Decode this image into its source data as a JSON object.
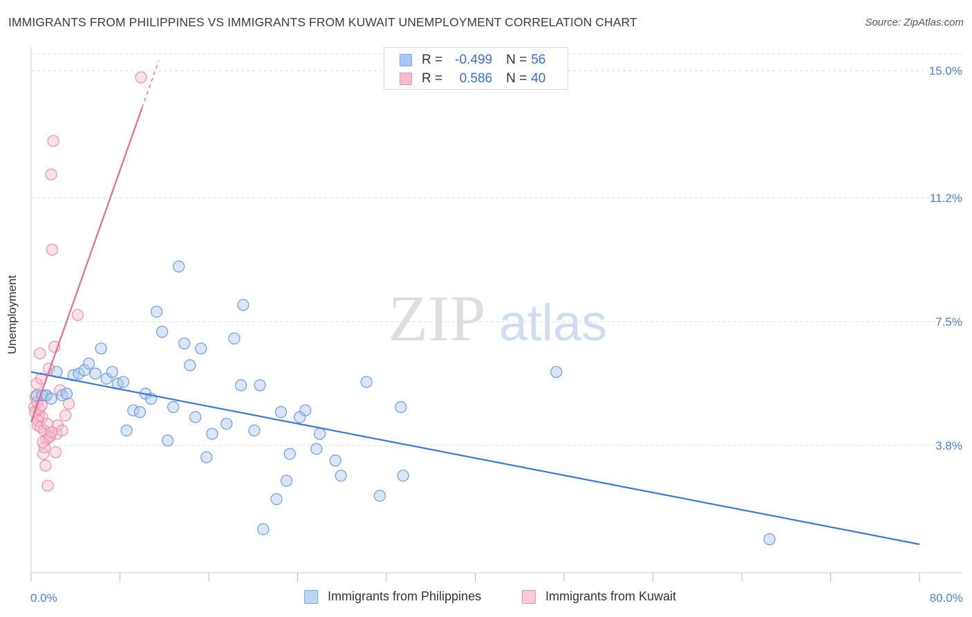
{
  "header": {
    "title": "IMMIGRANTS FROM PHILIPPINES VS IMMIGRANTS FROM KUWAIT UNEMPLOYMENT CORRELATION CHART",
    "source": "Source: ZipAtlas.com"
  },
  "watermark": {
    "zip": "ZIP",
    "atlas": "atlas"
  },
  "legend": {
    "rows": [
      {
        "r_label": "R =",
        "r_value": "-0.499",
        "n_label": "N =",
        "n_value": "56",
        "color": "#a9c7f0",
        "border": "#7aa6e6"
      },
      {
        "r_label": "R =",
        "r_value": "0.586",
        "n_label": "N =",
        "n_value": "40",
        "color": "#f7bccd",
        "border": "#ee8fab"
      }
    ]
  },
  "bottom_legend": [
    {
      "label": "Immigrants from Philippines",
      "color": "#bcd4f5",
      "border": "#7aa6e6"
    },
    {
      "label": "Immigrants from Kuwait",
      "color": "#f9cad8",
      "border": "#ee8fab"
    }
  ],
  "chart_data": {
    "type": "scatter",
    "title": "IMMIGRANTS FROM PHILIPPINES VS IMMIGRANTS FROM KUWAIT UNEMPLOYMENT CORRELATION CHART",
    "xlabel": "",
    "ylabel": "Unemployment",
    "xlim": [
      0,
      80
    ],
    "ylim": [
      0,
      15.5
    ],
    "x_tick_labels": [
      "0.0%",
      "80.0%"
    ],
    "y_ticks": [
      3.8,
      7.5,
      11.2,
      15.0
    ],
    "y_tick_labels": [
      "3.8%",
      "7.5%",
      "11.2%",
      "15.0%"
    ],
    "grid": true,
    "colors": {
      "philippines": "#3a78d6",
      "kuwait": "#e46b97"
    },
    "series": [
      {
        "name": "Immigrants from Philippines",
        "r": -0.499,
        "n": 56,
        "trend": {
          "x0": 0,
          "y0": 6.0,
          "x1": 80,
          "y1": 0.85
        },
        "points": [
          [
            0.5,
            5.3
          ],
          [
            1.0,
            5.3
          ],
          [
            1.4,
            5.3
          ],
          [
            1.8,
            5.2
          ],
          [
            2.3,
            6.0
          ],
          [
            2.8,
            5.3
          ],
          [
            3.2,
            5.35
          ],
          [
            3.8,
            5.9
          ],
          [
            4.3,
            5.95
          ],
          [
            4.8,
            6.05
          ],
          [
            5.2,
            6.25
          ],
          [
            5.8,
            5.95
          ],
          [
            6.3,
            6.7
          ],
          [
            6.8,
            5.8
          ],
          [
            7.3,
            6.0
          ],
          [
            7.8,
            5.65
          ],
          [
            8.3,
            5.7
          ],
          [
            8.6,
            4.25
          ],
          [
            9.2,
            4.85
          ],
          [
            9.8,
            4.8
          ],
          [
            10.3,
            5.35
          ],
          [
            10.8,
            5.2
          ],
          [
            11.3,
            7.8
          ],
          [
            11.8,
            7.2
          ],
          [
            12.3,
            3.95
          ],
          [
            12.8,
            4.95
          ],
          [
            13.3,
            9.15
          ],
          [
            13.8,
            6.85
          ],
          [
            14.3,
            6.2
          ],
          [
            14.8,
            4.65
          ],
          [
            15.3,
            6.7
          ],
          [
            15.8,
            3.45
          ],
          [
            16.3,
            4.15
          ],
          [
            17.6,
            4.45
          ],
          [
            18.3,
            7.0
          ],
          [
            19.1,
            8.0
          ],
          [
            18.9,
            5.6
          ],
          [
            20.1,
            4.25
          ],
          [
            20.6,
            5.6
          ],
          [
            20.9,
            1.3
          ],
          [
            22.1,
            2.2
          ],
          [
            22.5,
            4.8
          ],
          [
            23.0,
            2.75
          ],
          [
            23.3,
            3.55
          ],
          [
            24.2,
            4.65
          ],
          [
            24.7,
            4.85
          ],
          [
            25.7,
            3.7
          ],
          [
            26.0,
            4.15
          ],
          [
            27.4,
            3.35
          ],
          [
            27.9,
            2.9
          ],
          [
            30.2,
            5.7
          ],
          [
            31.4,
            2.3
          ],
          [
            33.3,
            4.95
          ],
          [
            33.5,
            2.9
          ],
          [
            47.3,
            6.0
          ],
          [
            66.5,
            1.0
          ]
        ]
      },
      {
        "name": "Immigrants from Kuwait",
        "r": 0.586,
        "n": 40,
        "trend": {
          "x0": 0,
          "y0": 4.5,
          "x1": 10,
          "y1": 13.9,
          "x2": 11.5,
          "y2": 15.3
        },
        "points": [
          [
            0.3,
            4.95
          ],
          [
            0.4,
            5.25
          ],
          [
            0.5,
            5.65
          ],
          [
            0.6,
            4.4
          ],
          [
            0.7,
            4.7
          ],
          [
            0.8,
            6.55
          ],
          [
            0.9,
            5.8
          ],
          [
            1.0,
            4.65
          ],
          [
            1.1,
            3.55
          ],
          [
            1.2,
            3.75
          ],
          [
            1.3,
            3.2
          ],
          [
            1.4,
            4.0
          ],
          [
            1.5,
            2.6
          ],
          [
            1.6,
            6.1
          ],
          [
            1.7,
            4.1
          ],
          [
            1.8,
            11.9
          ],
          [
            1.9,
            9.65
          ],
          [
            2.0,
            12.9
          ],
          [
            2.1,
            6.75
          ],
          [
            2.2,
            3.6
          ],
          [
            2.3,
            4.15
          ],
          [
            2.4,
            4.4
          ],
          [
            2.6,
            5.45
          ],
          [
            2.8,
            4.25
          ],
          [
            3.1,
            4.7
          ],
          [
            3.4,
            5.05
          ],
          [
            0.35,
            4.8
          ],
          [
            0.55,
            5.1
          ],
          [
            0.65,
            4.55
          ],
          [
            0.75,
            4.9
          ],
          [
            0.85,
            4.35
          ],
          [
            0.95,
            5.0
          ],
          [
            1.05,
            3.9
          ],
          [
            1.15,
            4.25
          ],
          [
            1.25,
            5.3
          ],
          [
            1.45,
            4.45
          ],
          [
            1.65,
            4.05
          ],
          [
            1.85,
            4.2
          ],
          [
            4.2,
            7.7
          ],
          [
            9.9,
            14.8
          ]
        ]
      }
    ]
  }
}
